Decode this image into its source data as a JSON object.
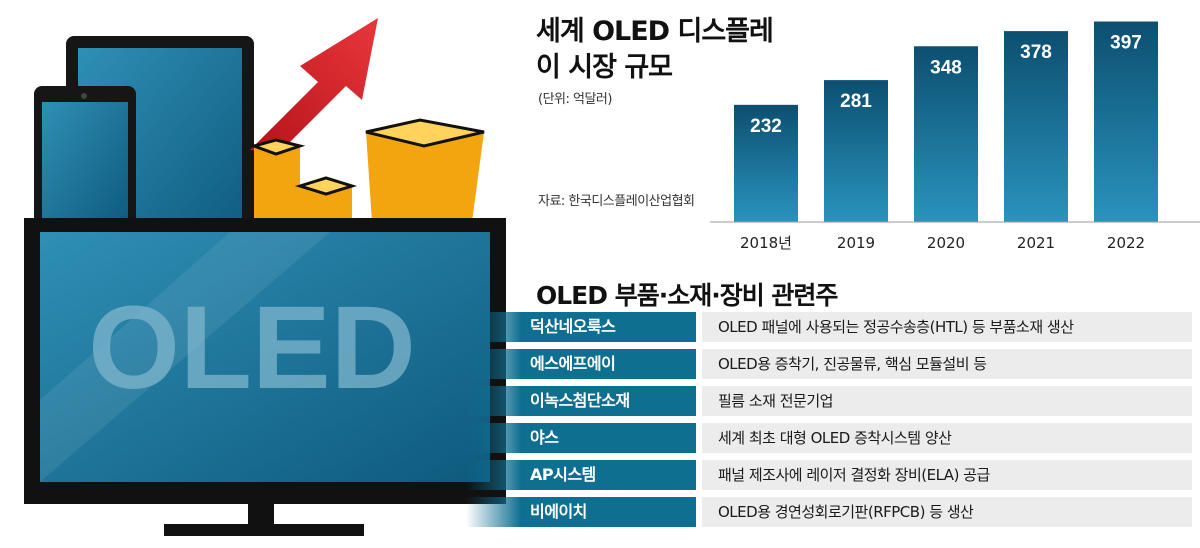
{
  "illustration": {
    "tv_text": "OLED",
    "colors": {
      "screen": "#1a6e91",
      "frame": "#111111",
      "arrow": "#d41f1f",
      "coins": "#f2a50f"
    }
  },
  "chart_data": {
    "type": "bar",
    "title": "세계 OLED 디스플레이 시장 규모",
    "unit": "(단위: 억달러)",
    "source": "자료: 한국디스플레이산업협회",
    "categories": [
      "2018년",
      "2019",
      "2020",
      "2021",
      "2022"
    ],
    "values": [
      232,
      281,
      348,
      378,
      397
    ],
    "ylim": [
      0,
      400
    ],
    "grid": false,
    "bar_color": "#1474a0"
  },
  "related_stocks": {
    "title": "OLED 부품·소재·장비 관련주",
    "rows": [
      {
        "name": "덕산네오룩스",
        "desc": "OLED 패널에 사용되는 정공수송층(HTL) 등 부품소재 생산"
      },
      {
        "name": "에스에프에이",
        "desc": "OLED용 증착기, 진공물류, 핵심 모듈설비 등"
      },
      {
        "name": "이녹스첨단소재",
        "desc": "필름 소재 전문기업"
      },
      {
        "name": "야스",
        "desc": "세계 최초 대형 OLED 증착시스템 양산"
      },
      {
        "name": "AP시스템",
        "desc": "패널 제조사에 레이저 결정화 장비(ELA) 공급"
      },
      {
        "name": "비에이치",
        "desc": "OLED용 경연성회로기판(RFPCB) 등 생산"
      }
    ]
  }
}
